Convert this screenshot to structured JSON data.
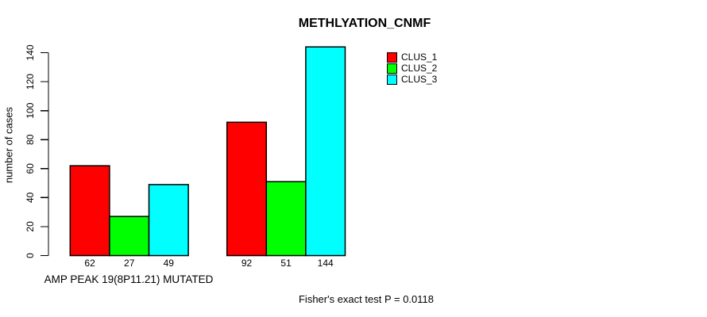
{
  "figure": {
    "background": "#ffffff",
    "text_color": "#000000"
  },
  "chart_data": {
    "type": "bar",
    "title": "METHLYATION_CNMF",
    "ylabel": "number of cases",
    "xlabel": "",
    "ylim": [
      0,
      140
    ],
    "yticks": [
      0,
      20,
      40,
      60,
      80,
      100,
      120,
      140
    ],
    "categories": [
      "AMP PEAK 19(8P11.21) MUTATED",
      ""
    ],
    "series": [
      {
        "name": "CLUS_1",
        "color": "#ff0000",
        "values": [
          62,
          92
        ]
      },
      {
        "name": "CLUS_2",
        "color": "#00ff00",
        "values": [
          27,
          51
        ]
      },
      {
        "name": "CLUS_3",
        "color": "#00ffff",
        "values": [
          49,
          144
        ]
      }
    ],
    "show_bar_values": true,
    "legend_position": "top-right",
    "grid": false,
    "axis_color": "#000000",
    "bar_border_color": "#000000",
    "annotation": "Fisher's exact test P = 0.0118"
  }
}
